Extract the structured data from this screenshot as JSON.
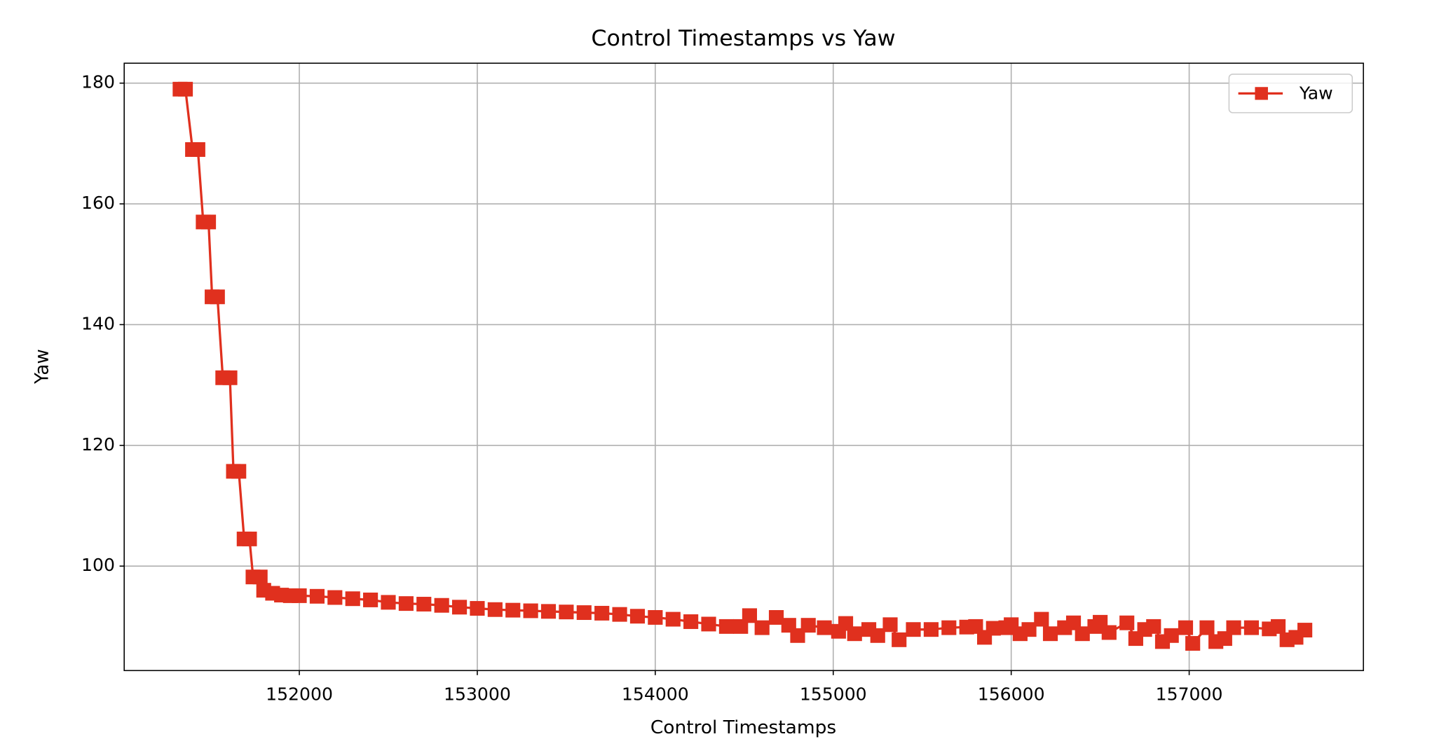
{
  "chart_data": {
    "type": "line",
    "title": "Control Timestamps vs Yaw",
    "x_label": "Control Timestamps",
    "y_label": "Yaw",
    "x": [
      151330,
      151360,
      151400,
      151430,
      151460,
      151490,
      151510,
      151540,
      151570,
      151610,
      151630,
      151660,
      151690,
      151720,
      151740,
      151780,
      151800,
      151850,
      151900,
      151950,
      152000,
      152100,
      152200,
      152300,
      152400,
      152500,
      152600,
      152700,
      152800,
      152900,
      153000,
      153100,
      153200,
      153300,
      153400,
      153500,
      153600,
      153700,
      153800,
      153900,
      154000,
      154100,
      154200,
      154300,
      154400,
      154480,
      154530,
      154600,
      154680,
      154750,
      154800,
      154860,
      154950,
      155030,
      155070,
      155120,
      155200,
      155250,
      155320,
      155370,
      155450,
      155550,
      155650,
      155750,
      155800,
      155850,
      155900,
      155970,
      156000,
      156050,
      156100,
      156170,
      156220,
      156300,
      156350,
      156400,
      156470,
      156500,
      156550,
      156650,
      156700,
      156750,
      156800,
      156850,
      156900,
      156980,
      157020,
      157100,
      157150,
      157200,
      157250,
      157350,
      157450,
      157500,
      157550,
      157600,
      157650
    ],
    "series": [
      {
        "name": "Yaw",
        "color": "#e0301e",
        "marker": "square",
        "values": [
          179,
          179,
          169,
          169,
          157,
          157,
          144.6,
          144.6,
          131.2,
          131.2,
          115.7,
          115.7,
          104.5,
          104.5,
          98.2,
          98.2,
          96,
          95.5,
          95.2,
          95.1,
          95.1,
          95,
          94.8,
          94.6,
          94.4,
          94,
          93.8,
          93.7,
          93.5,
          93.2,
          93,
          92.8,
          92.7,
          92.6,
          92.5,
          92.4,
          92.3,
          92.2,
          92,
          91.7,
          91.5,
          91.2,
          90.8,
          90.4,
          90,
          90,
          91.8,
          89.8,
          91.5,
          90.2,
          88.5,
          90.2,
          89.8,
          89.2,
          90.5,
          88.8,
          89.5,
          88.5,
          90.3,
          87.8,
          89.5,
          89.5,
          89.8,
          89.9,
          90,
          88.2,
          89.7,
          89.8,
          90.3,
          88.8,
          89.5,
          91.2,
          88.8,
          89.8,
          90.6,
          88.8,
          90,
          90.7,
          89,
          90.6,
          88,
          89.5,
          90,
          87.5,
          88.5,
          89.8,
          87.2,
          89.8,
          87.5,
          88,
          89.8,
          89.8,
          89.6,
          90,
          87.8,
          88.2,
          89.4
        ]
      }
    ],
    "xlim": [
      151016,
      157979
    ],
    "ylim": [
      82.7,
      183.3
    ],
    "xticks": [
      152000,
      153000,
      154000,
      155000,
      156000,
      157000
    ],
    "yticks": [
      100,
      120,
      140,
      160,
      180
    ],
    "grid": true,
    "legend": "upper right"
  }
}
